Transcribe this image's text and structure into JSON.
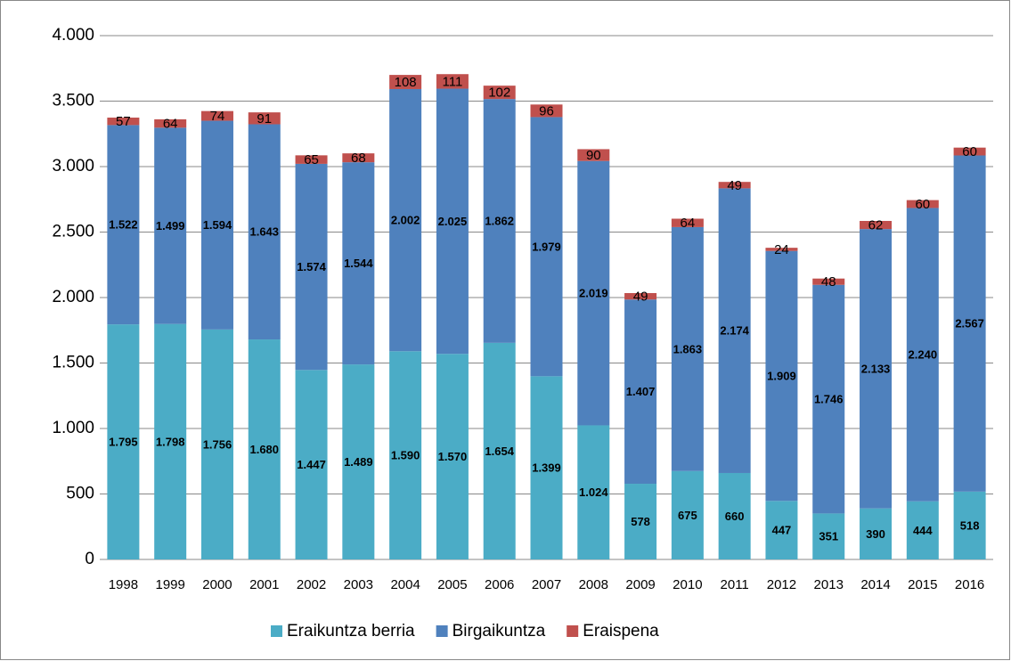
{
  "chart_data": {
    "type": "stacked_bar",
    "categories": [
      "1998",
      "1999",
      "2000",
      "2001",
      "2002",
      "2003",
      "2004",
      "2005",
      "2006",
      "2007",
      "2008",
      "2009",
      "2010",
      "2011",
      "2012",
      "2013",
      "2014",
      "2015",
      "2016"
    ],
    "series": [
      {
        "name": "Eraikuntza berria",
        "color": "#4bacc6",
        "values": [
          1795,
          1798,
          1756,
          1680,
          1447,
          1489,
          1590,
          1570,
          1654,
          1399,
          1024,
          578,
          675,
          660,
          447,
          351,
          390,
          444,
          518
        ],
        "value_labels": [
          "1.795",
          "1.798",
          "1.756",
          "1.680",
          "1.447",
          "1.489",
          "1.590",
          "1.570",
          "1.654",
          "1.399",
          "1.024",
          "578",
          "675",
          "660",
          "447",
          "351",
          "390",
          "444",
          "518"
        ]
      },
      {
        "name": "Birgaikuntza",
        "color": "#4f81bd",
        "values": [
          1522,
          1499,
          1594,
          1643,
          1574,
          1544,
          2002,
          2025,
          1862,
          1979,
          2019,
          1407,
          1863,
          2174,
          1909,
          1746,
          2133,
          2240,
          2567
        ],
        "value_labels": [
          "1.522",
          "1.499",
          "1.594",
          "1.643",
          "1.574",
          "1.544",
          "2.002",
          "2.025",
          "1.862",
          "1.979",
          "2.019",
          "1.407",
          "1.863",
          "2.174",
          "1.909",
          "1.746",
          "2.133",
          "2.240",
          "2.567"
        ]
      },
      {
        "name": "Eraispena",
        "color": "#c0504d",
        "values": [
          57,
          64,
          74,
          91,
          65,
          68,
          108,
          111,
          102,
          96,
          90,
          49,
          64,
          49,
          24,
          48,
          62,
          60,
          60
        ]
      }
    ],
    "ylim": [
      0,
      4000
    ],
    "yticks": [
      0,
      500,
      {
        "value": 1000,
        "label": "1.000"
      },
      {
        "value": 1500,
        "label": "1.500"
      },
      {
        "value": 2000,
        "label": "2.000"
      },
      {
        "value": 2500,
        "label": "2.500"
      },
      {
        "value": 3000,
        "label": "3.000"
      },
      {
        "value": 3500,
        "label": "3.500"
      },
      {
        "value": 4000,
        "label": "4.000"
      }
    ],
    "grid": true,
    "legend": "bottom"
  }
}
